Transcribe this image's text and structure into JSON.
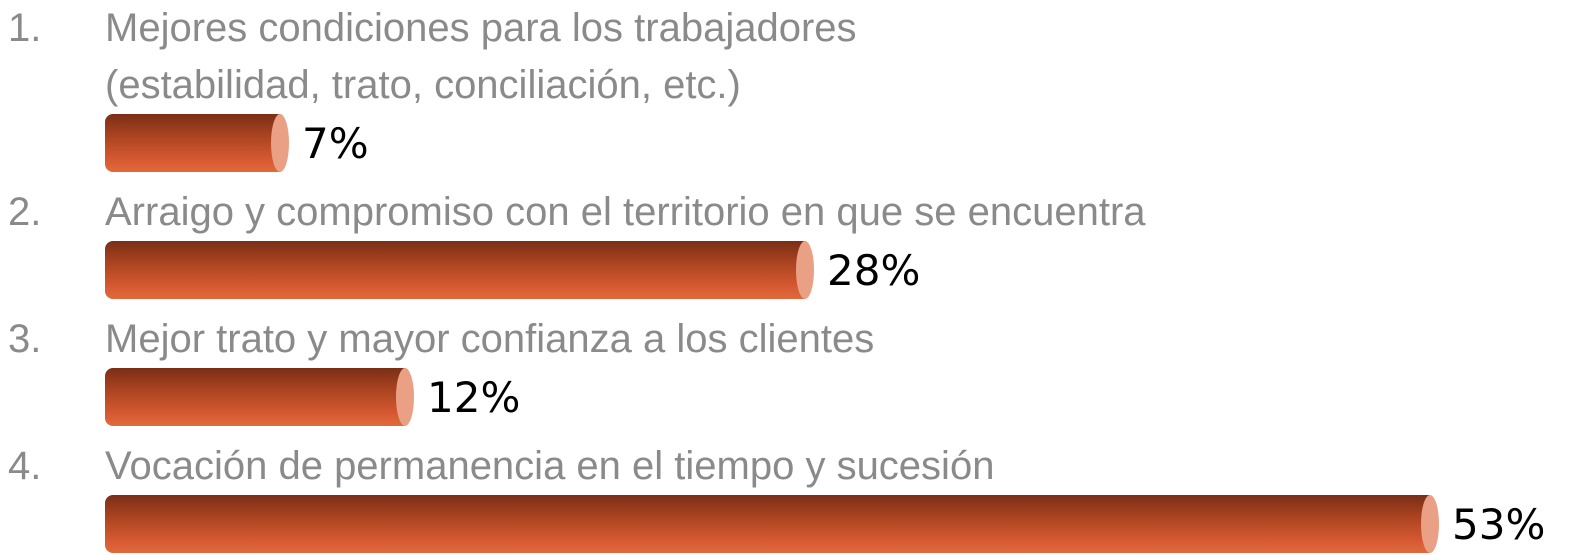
{
  "chart_data": {
    "type": "bar",
    "numbers": [
      "1.",
      "2.",
      "3.",
      "4."
    ],
    "categories": [
      "Mejores condiciones para los trabajadores\n(estabilidad, trato, conciliación, etc.)",
      "Arraigo y compromiso con el territorio en que se encuentra",
      "Mejor trato y mayor confianza a los clientes",
      "Vocación de permanencia en el tiempo y sucesión"
    ],
    "values": [
      7,
      28,
      12,
      53
    ],
    "value_labels": [
      "7%",
      "28%",
      "12%",
      "53%"
    ],
    "color": "#d75a33"
  }
}
